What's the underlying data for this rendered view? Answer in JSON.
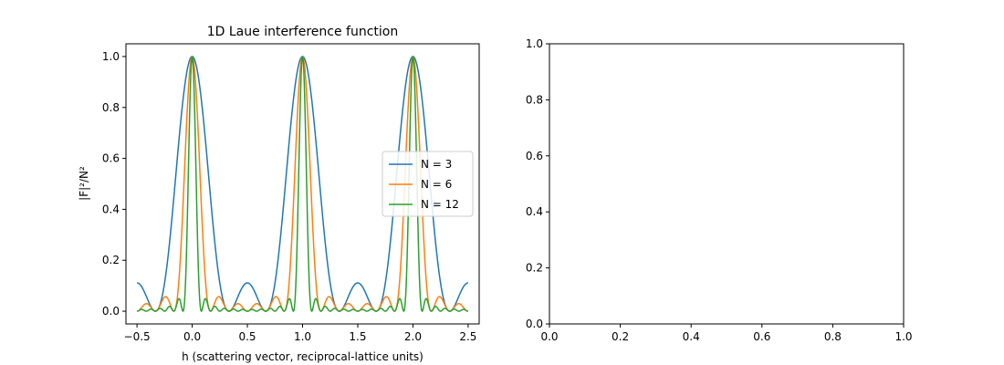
{
  "figure": {
    "background": "#ffffff"
  },
  "chart_data": [
    {
      "type": "line",
      "title": "1D Laue interference function",
      "xlabel": "h (scattering vector, reciprocal-lattice units)",
      "ylabel": "|F|²/N²",
      "xlim": [
        -0.6,
        2.6
      ],
      "ylim": [
        -0.05,
        1.05
      ],
      "xticks": [
        -0.5,
        0.0,
        0.5,
        1.0,
        1.5,
        2.0,
        2.5
      ],
      "xtick_labels": [
        "−0.5",
        "0.0",
        "0.5",
        "1.0",
        "1.5",
        "2.0",
        "2.5"
      ],
      "yticks": [
        0.0,
        0.2,
        0.4,
        0.6,
        0.8,
        1.0
      ],
      "ytick_labels": [
        "0.0",
        "0.2",
        "0.4",
        "0.6",
        "0.8",
        "1.0"
      ],
      "x_range": [
        -0.5,
        2.5
      ],
      "function": "sin²(πNh) / (N² sin²(πh))",
      "grid": false,
      "legend_position": "center-right",
      "series": [
        {
          "name": "N = 3",
          "N": 3,
          "color": "#1f77b4"
        },
        {
          "name": "N = 6",
          "N": 6,
          "color": "#ff7f0e"
        },
        {
          "name": "N = 12",
          "N": 12,
          "color": "#2ca02c"
        }
      ]
    },
    {
      "type": "line",
      "title": "",
      "xlabel": "",
      "ylabel": "",
      "xlim": [
        0.0,
        1.0
      ],
      "ylim": [
        0.0,
        1.0
      ],
      "xticks": [
        0.0,
        0.2,
        0.4,
        0.6,
        0.8,
        1.0
      ],
      "xtick_labels": [
        "0.0",
        "0.2",
        "0.4",
        "0.6",
        "0.8",
        "1.0"
      ],
      "yticks": [
        0.0,
        0.2,
        0.4,
        0.6,
        0.8,
        1.0
      ],
      "ytick_labels": [
        "0.0",
        "0.2",
        "0.4",
        "0.6",
        "0.8",
        "1.0"
      ],
      "grid": false,
      "series": []
    }
  ]
}
